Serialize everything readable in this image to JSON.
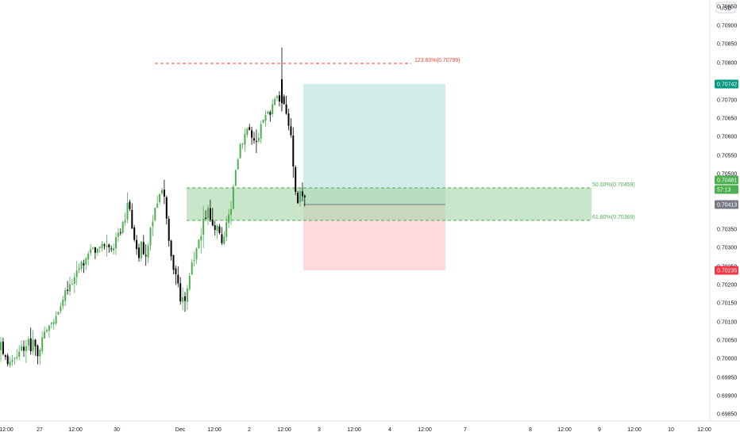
{
  "currency_label": "USD",
  "colors": {
    "up": "#26a69a",
    "up_fill": "#4caf50",
    "down": "#000000",
    "fib_zone": "#a5d6a7",
    "fib_line": "#4caf50",
    "fib_label": "#4caf50",
    "ext_line": "#f44336",
    "target_zone": "#b2dfdb",
    "stop_zone": "#ffcdd2",
    "badge_target": "#089981",
    "badge_stop": "#f23645",
    "badge_price": "#4caf50",
    "badge_current": "#787b86",
    "axis_text": "#131722"
  },
  "price_axis": {
    "labels": [
      "0.70950",
      "0.70900",
      "0.70850",
      "0.70800",
      "0.70700",
      "0.70650",
      "0.70600",
      "0.70550",
      "0.70500",
      "0.70350",
      "0.70300",
      "0.70250",
      "0.70200",
      "0.70150",
      "0.70100",
      "0.70050",
      "0.70000",
      "0.69950",
      "0.69900",
      "0.69850"
    ],
    "badges": [
      {
        "text": "0.70742",
        "kind": "target"
      },
      {
        "text": "0.70481",
        "kind": "price"
      },
      {
        "text": "57:13",
        "kind": "price"
      },
      {
        "text": "0.70413",
        "kind": "current"
      },
      {
        "text": "0.70235",
        "kind": "stop"
      }
    ]
  },
  "time_axis": {
    "labels": [
      "12:00",
      "27",
      "12:00",
      "30",
      "Dec",
      "12:00",
      "2",
      "12:00",
      "3",
      "12:00",
      "4",
      "12:00",
      "7",
      "8",
      "12:00",
      "9",
      "12:00",
      "10",
      "12:00"
    ]
  },
  "annotations": {
    "ext_label": "123.60%(0.70799)",
    "fib50_label": "50.00%(0.70459)",
    "fib618_label": "61.80%(0.70369)"
  },
  "chart_data": {
    "type": "candlestick",
    "y_range": [
      0.6982,
      0.7096
    ],
    "levels": {
      "ext_123_6": 0.70799,
      "fib_50": 0.70459,
      "fib_61_8": 0.70369,
      "target": 0.70742,
      "stop": 0.70235,
      "entry": 0.70413,
      "last": 0.70481
    }
  }
}
